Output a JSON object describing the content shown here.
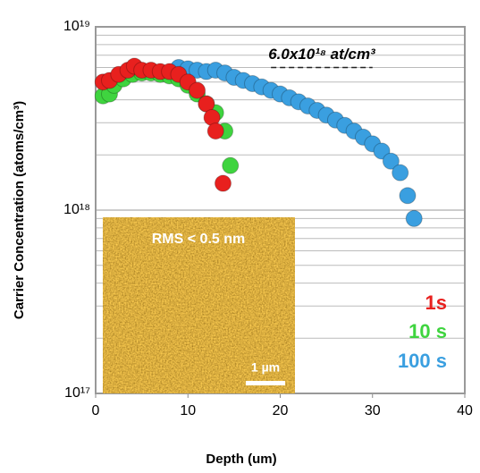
{
  "chart_data": {
    "type": "scatter",
    "xlabel": "Depth (um)",
    "ylabel": "Carrier Concentration (atoms/cm³)",
    "xlim": [
      0,
      40
    ],
    "xticks": [
      0,
      10,
      20,
      30,
      40
    ],
    "ylim": [
      1e+17,
      1e+19
    ],
    "log_y": true,
    "yticks": [
      {
        "value": 1e+17,
        "label": "10¹⁷"
      },
      {
        "value": 1e+18,
        "label": "10¹⁸"
      },
      {
        "value": 1e+19,
        "label": "10¹⁹"
      }
    ],
    "yminorticks": [
      2e+17,
      3e+17,
      4e+17,
      5e+17,
      6e+17,
      7e+17,
      8e+17,
      9e+17,
      2e+18,
      3e+18,
      4e+18,
      5e+18,
      6e+18,
      7e+18,
      8e+18,
      9e+18
    ],
    "grid": true,
    "reference": {
      "text": "6.0x10¹⁸ at/cm³",
      "value": 6e+18
    },
    "inset": {
      "title": "RMS < 0.5 nm",
      "scale": "1 µm"
    },
    "series": [
      {
        "name": "100 s",
        "color": "#3a9fe0",
        "x": [
          9,
          10,
          11,
          12,
          13,
          14,
          15,
          16,
          17,
          18,
          19,
          20,
          21,
          22,
          23,
          24,
          25,
          26,
          27,
          28,
          29,
          30,
          31,
          32,
          33,
          33.8,
          34.5
        ],
        "values": [
          6e+18,
          5.9e+18,
          5.8e+18,
          5.7e+18,
          5.8e+18,
          5.6e+18,
          5.3e+18,
          5.1e+18,
          4.9e+18,
          4.7e+18,
          4.5e+18,
          4.3e+18,
          4.1e+18,
          3.9e+18,
          3.7e+18,
          3.5e+18,
          3.3e+18,
          3.1e+18,
          2.9e+18,
          2.7e+18,
          2.5e+18,
          2.3e+18,
          2.1e+18,
          1.85e+18,
          1.6e+18,
          1.2e+18,
          9e+17
        ]
      },
      {
        "name": "10 s",
        "color": "#3fd43f",
        "x": [
          0.8,
          1.5,
          2,
          3,
          4,
          5,
          6,
          7,
          8,
          9,
          10,
          11,
          12,
          13,
          14,
          14.6
        ],
        "values": [
          4.2e+18,
          4.3e+18,
          4.8e+18,
          5.2e+18,
          5.5e+18,
          5.6e+18,
          5.6e+18,
          5.5e+18,
          5.4e+18,
          5.2e+18,
          4.8e+18,
          4.3e+18,
          3.8e+18,
          3.4e+18,
          2.7e+18,
          1.75e+18
        ]
      },
      {
        "name": "1s",
        "color": "#e8201e",
        "x": [
          0.8,
          1.5,
          2.5,
          3.5,
          4.2,
          5,
          6,
          7,
          8,
          9,
          10,
          11,
          12,
          12.6,
          13,
          13.8
        ],
        "values": [
          5e+18,
          5.1e+18,
          5.5e+18,
          5.8e+18,
          6.1e+18,
          5.8e+18,
          5.8e+18,
          5.7e+18,
          5.7e+18,
          5.5e+18,
          5e+18,
          4.5e+18,
          3.8e+18,
          3.2e+18,
          2.7e+18,
          1.4e+18
        ]
      }
    ]
  }
}
